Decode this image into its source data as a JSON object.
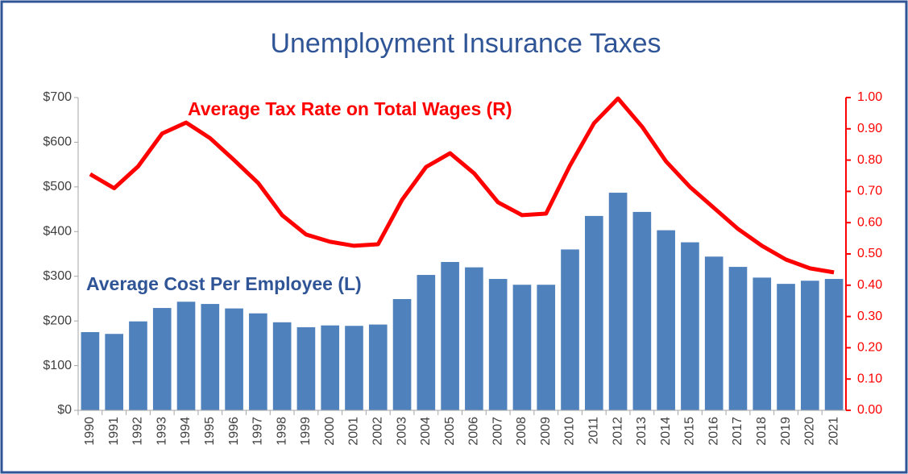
{
  "chart_data": {
    "type": "bar",
    "title": "Unemployment Insurance Taxes",
    "annotations": [
      "Average Tax Rate on Total Wages (R)",
      "Average Cost Per Employee (L)"
    ],
    "categories": [
      "1990",
      "1991",
      "1992",
      "1993",
      "1994",
      "1995",
      "1996",
      "1997",
      "1998",
      "1999",
      "2000",
      "2001",
      "2002",
      "2003",
      "2004",
      "2005",
      "2006",
      "2007",
      "2008",
      "2009",
      "2010",
      "2011",
      "2012",
      "2013",
      "2014",
      "2015",
      "2016",
      "2017",
      "2018",
      "2019",
      "2020",
      "2021"
    ],
    "series": [
      {
        "name": "Average Cost Per Employee (L)",
        "type": "bar",
        "color": "#4f81bd",
        "axis": "y",
        "values": [
          175,
          171,
          199,
          229,
          243,
          238,
          228,
          217,
          197,
          186,
          190,
          189,
          192,
          249,
          303,
          332,
          320,
          294,
          281,
          281,
          360,
          435,
          487,
          444,
          403,
          376,
          344,
          321,
          297,
          283,
          290,
          294
        ]
      },
      {
        "name": "Average Tax Rate on Total Wages (R)",
        "type": "line",
        "color": "#ff0000",
        "axis": "y2",
        "values": [
          0.755,
          0.71,
          0.78,
          0.885,
          0.92,
          0.87,
          0.8,
          0.727,
          0.624,
          0.562,
          0.539,
          0.526,
          0.531,
          0.673,
          0.778,
          0.822,
          0.758,
          0.665,
          0.624,
          0.629,
          0.783,
          0.918,
          0.997,
          0.907,
          0.796,
          0.714,
          0.647,
          0.58,
          0.526,
          0.482,
          0.454,
          0.441
        ]
      }
    ],
    "ylim": [
      0,
      700
    ],
    "yticks": [
      {
        "value": 0,
        "label": "$0"
      },
      {
        "value": 100,
        "label": "$100"
      },
      {
        "value": 200,
        "label": "$200"
      },
      {
        "value": 300,
        "label": "$300"
      },
      {
        "value": 400,
        "label": "$400"
      },
      {
        "value": 500,
        "label": "$500"
      },
      {
        "value": 600,
        "label": "$600"
      },
      {
        "value": 700,
        "label": "$700"
      }
    ],
    "y2lim": [
      0,
      1
    ],
    "y2ticks": [
      {
        "value": 0,
        "label": "0.00"
      },
      {
        "value": 0.1,
        "label": "0.10"
      },
      {
        "value": 0.2,
        "label": "0.20"
      },
      {
        "value": 0.3,
        "label": "0.30"
      },
      {
        "value": 0.4,
        "label": "0.40"
      },
      {
        "value": 0.5,
        "label": "0.50"
      },
      {
        "value": 0.6,
        "label": "0.60"
      },
      {
        "value": 0.7,
        "label": "0.70"
      },
      {
        "value": 0.8,
        "label": "0.80"
      },
      {
        "value": 0.9,
        "label": "0.90"
      },
      {
        "value": 1,
        "label": "1.00"
      }
    ],
    "grid": false
  }
}
